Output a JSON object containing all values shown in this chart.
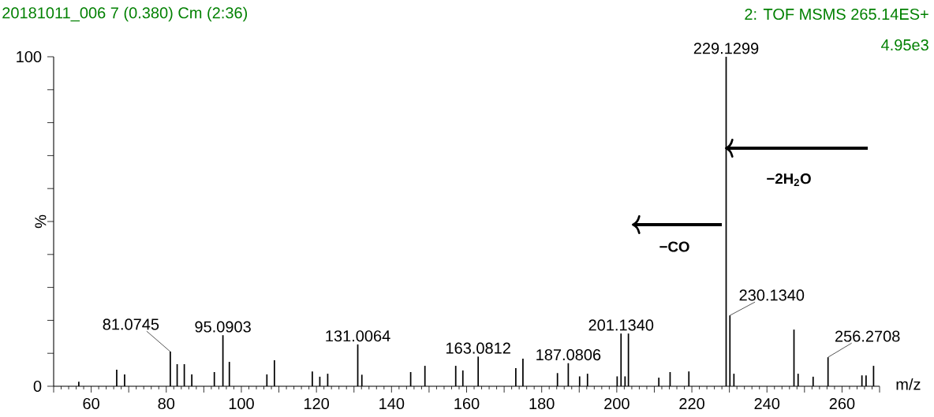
{
  "chart_data": {
    "type": "bar",
    "title": "20181011_006 7 (0.380) Cm (2:36)",
    "xlabel": "m/z",
    "ylabel": "%",
    "x": [
      56.7,
      66.8,
      68.9,
      81.0745,
      82.9,
      84.8,
      86.8,
      92.8,
      95.0903,
      96.8,
      106.8,
      108.8,
      118.9,
      120.9,
      123.0,
      131.0064,
      132.1,
      145.1,
      148.9,
      157.1,
      159.0,
      163.0812,
      173.1,
      175.0,
      184.2,
      187.0806,
      190.1,
      192.2,
      200.1,
      201.134,
      202.2,
      203.1,
      211.2,
      214.2,
      219.2,
      229.1299,
      230.134,
      231.2,
      247.2,
      248.3,
      252.3,
      256.2708,
      265.3,
      266.4,
      268.4
    ],
    "series": [
      {
        "color": "#000000",
        "values": [
          1.4,
          5,
          3.6,
          10.5,
          6.7,
          6.7,
          3.6,
          4.3,
          15.5,
          7.4,
          3.6,
          7.9,
          4.5,
          2.9,
          3.8,
          12.7,
          3.5,
          4.3,
          6.2,
          6.2,
          4.8,
          9,
          5.5,
          8.4,
          4,
          7,
          3,
          3.8,
          3,
          16,
          3,
          16,
          2.6,
          4.3,
          4.5,
          100,
          21.5,
          3.8,
          17.2,
          3.8,
          2.9,
          8.8,
          3.3,
          3.3,
          6.2
        ]
      }
    ],
    "xlim": [
      50,
      270
    ],
    "xticks": [
      {
        "value": 50,
        "label": null
      },
      60,
      {
        "value": 70,
        "label": null
      },
      80,
      {
        "value": 90,
        "label": null
      },
      100,
      {
        "value": 110,
        "label": null
      },
      120,
      {
        "value": 130,
        "label": null
      },
      140,
      {
        "value": 150,
        "label": null
      },
      160,
      {
        "value": 170,
        "label": null
      },
      180,
      {
        "value": 190,
        "label": null
      },
      200,
      {
        "value": 210,
        "label": null
      },
      220,
      {
        "value": 230,
        "label": null
      },
      240,
      {
        "value": 250,
        "label": null
      },
      260,
      {
        "value": 270,
        "label": null
      }
    ],
    "ylim": [
      0,
      100
    ],
    "yticks": [
      0,
      {
        "value": 10,
        "label": null
      },
      {
        "value": 20,
        "label": null
      },
      {
        "value": 30,
        "label": null
      },
      {
        "value": 40,
        "label": null
      },
      {
        "value": 50,
        "label": null
      },
      {
        "value": 60,
        "label": null
      },
      {
        "value": 70,
        "label": null
      },
      {
        "value": 80,
        "label": null
      },
      {
        "value": 90,
        "label": null
      },
      100
    ],
    "annotations": [
      "2: TOF MSMS 265.14ES+",
      "4.95e3",
      {
        "text": "81.0745",
        "x": 81.0745,
        "y": 10.5
      },
      {
        "text": "95.0903",
        "x": 95.0903,
        "y": 15.5
      },
      {
        "text": "131.0064",
        "x": 131.0064,
        "y": 12.7
      },
      {
        "text": "163.0812",
        "x": 163.0812,
        "y": 9
      },
      {
        "text": "187.0806",
        "x": 187.0806,
        "y": 7
      },
      {
        "text": "201.1340",
        "x": 201.134,
        "y": 16
      },
      {
        "text": "229.1299",
        "x": 229.1299,
        "y": 100
      },
      {
        "text": "230.1340",
        "x": 230.134,
        "y": 21.5
      },
      {
        "text": "256.2708",
        "x": 256.2708,
        "y": 8.8
      },
      "−2H$_{2}$O",
      "−CO"
    ]
  }
}
